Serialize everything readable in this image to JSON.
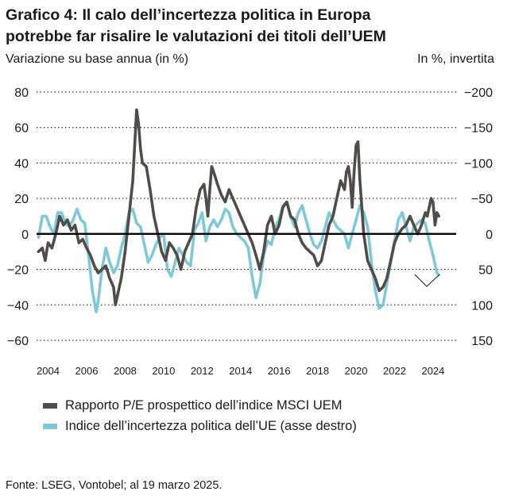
{
  "title_lines": [
    "Grafico 4: Il calo dell’incertezza politica in Europa",
    "potrebbe far risalire le valutazioni dei titoli dell’UEM"
  ],
  "left_axis_label": "Variazione su base annua (in %)",
  "right_axis_label": "In %, invertita",
  "source": "Fonte: LSEG, Vontobel; al 19 marzo 2025.",
  "colors": {
    "pe": "#514c48",
    "epu": "#7ec9d9",
    "zero": "#000000",
    "grid": "#000000"
  },
  "chart_data": {
    "type": "line",
    "title": "Grafico 4: Il calo dell’incertezza politica in Europa potrebbe far risalire le valutazioni dei titoli dell’UEM",
    "x_ticks": [
      "2004",
      "2006",
      "2008",
      "2010",
      "2012",
      "2014",
      "2016",
      "2018",
      "2020",
      "2022",
      "2024"
    ],
    "xlim": [
      2003.4,
      2025.2
    ],
    "left_axis": {
      "ylim": [
        -60,
        80
      ],
      "ticks": [
        "80",
        "60",
        "40",
        "20",
        "0",
        "−20",
        "−40",
        "−60"
      ]
    },
    "right_axis": {
      "ylim": [
        150,
        -200
      ],
      "inverted": true,
      "ticks": [
        "−200",
        "−150",
        "−100",
        "−50",
        "0",
        "50",
        "100",
        "150"
      ]
    },
    "series": [
      {
        "name": "Rapporto P/E prospettico dell’indice MSCI UEM",
        "axis": "left",
        "points": [
          [
            2003.5,
            -10
          ],
          [
            2003.7,
            -8
          ],
          [
            2003.85,
            -15
          ],
          [
            2004.0,
            -5
          ],
          [
            2004.2,
            -8
          ],
          [
            2004.4,
            0
          ],
          [
            2004.6,
            10
          ],
          [
            2004.8,
            5
          ],
          [
            2005.0,
            8
          ],
          [
            2005.2,
            2
          ],
          [
            2005.4,
            5
          ],
          [
            2005.6,
            -5
          ],
          [
            2005.8,
            -3
          ],
          [
            2006.0,
            -8
          ],
          [
            2006.2,
            -12
          ],
          [
            2006.4,
            -18
          ],
          [
            2006.6,
            -22
          ],
          [
            2006.8,
            -20
          ],
          [
            2007.0,
            -18
          ],
          [
            2007.2,
            -25
          ],
          [
            2007.4,
            -30
          ],
          [
            2007.5,
            -40
          ],
          [
            2007.6,
            -35
          ],
          [
            2007.8,
            -25
          ],
          [
            2008.0,
            -10
          ],
          [
            2008.2,
            10
          ],
          [
            2008.4,
            30
          ],
          [
            2008.5,
            50
          ],
          [
            2008.6,
            70
          ],
          [
            2008.7,
            62
          ],
          [
            2008.8,
            48
          ],
          [
            2008.9,
            40
          ],
          [
            2009.1,
            38
          ],
          [
            2009.3,
            25
          ],
          [
            2009.5,
            10
          ],
          [
            2009.7,
            0
          ],
          [
            2009.9,
            -10
          ],
          [
            2010.1,
            -15
          ],
          [
            2010.3,
            -5
          ],
          [
            2010.5,
            -8
          ],
          [
            2010.7,
            -12
          ],
          [
            2010.9,
            -20
          ],
          [
            2011.1,
            -10
          ],
          [
            2011.3,
            -5
          ],
          [
            2011.5,
            0
          ],
          [
            2011.7,
            15
          ],
          [
            2011.9,
            25
          ],
          [
            2012.1,
            28
          ],
          [
            2012.2,
            20
          ],
          [
            2012.3,
            10
          ],
          [
            2012.4,
            25
          ],
          [
            2012.5,
            38
          ],
          [
            2012.6,
            35
          ],
          [
            2012.8,
            28
          ],
          [
            2013.0,
            22
          ],
          [
            2013.2,
            18
          ],
          [
            2013.4,
            25
          ],
          [
            2013.6,
            20
          ],
          [
            2013.8,
            15
          ],
          [
            2014.0,
            10
          ],
          [
            2014.2,
            5
          ],
          [
            2014.4,
            0
          ],
          [
            2014.6,
            -5
          ],
          [
            2014.8,
            -12
          ],
          [
            2015.0,
            -20
          ],
          [
            2015.2,
            -10
          ],
          [
            2015.4,
            5
          ],
          [
            2015.6,
            10
          ],
          [
            2015.8,
            0
          ],
          [
            2016.0,
            5
          ],
          [
            2016.2,
            15
          ],
          [
            2016.4,
            18
          ],
          [
            2016.6,
            10
          ],
          [
            2016.8,
            8
          ],
          [
            2017.0,
            0
          ],
          [
            2017.2,
            -5
          ],
          [
            2017.4,
            -8
          ],
          [
            2017.6,
            -10
          ],
          [
            2017.8,
            -12
          ],
          [
            2018.0,
            -18
          ],
          [
            2018.2,
            -15
          ],
          [
            2018.4,
            -5
          ],
          [
            2018.6,
            5
          ],
          [
            2018.8,
            10
          ],
          [
            2019.0,
            20
          ],
          [
            2019.2,
            30
          ],
          [
            2019.4,
            25
          ],
          [
            2019.5,
            35
          ],
          [
            2019.6,
            38
          ],
          [
            2019.7,
            30
          ],
          [
            2019.8,
            15
          ],
          [
            2019.9,
            35
          ],
          [
            2020.0,
            50
          ],
          [
            2020.1,
            52
          ],
          [
            2020.2,
            30
          ],
          [
            2020.3,
            15
          ],
          [
            2020.4,
            0
          ],
          [
            2020.6,
            -15
          ],
          [
            2020.8,
            -20
          ],
          [
            2021.0,
            -25
          ],
          [
            2021.2,
            -32
          ],
          [
            2021.4,
            -30
          ],
          [
            2021.6,
            -25
          ],
          [
            2021.8,
            -15
          ],
          [
            2022.0,
            -5
          ],
          [
            2022.2,
            0
          ],
          [
            2022.4,
            3
          ],
          [
            2022.6,
            5
          ],
          [
            2022.8,
            10
          ],
          [
            2023.0,
            5
          ],
          [
            2023.2,
            0
          ],
          [
            2023.4,
            5
          ],
          [
            2023.6,
            12
          ],
          [
            2023.7,
            10
          ],
          [
            2023.9,
            20
          ],
          [
            2024.0,
            18
          ],
          [
            2024.1,
            5
          ],
          [
            2024.2,
            12
          ],
          [
            2024.3,
            10
          ]
        ]
      },
      {
        "name": "Indice dell’incertezza politica dell’UE (asse destro)",
        "axis": "right",
        "points": [
          [
            2003.5,
            5
          ],
          [
            2003.7,
            -25
          ],
          [
            2003.9,
            -25
          ],
          [
            2004.1,
            -10
          ],
          [
            2004.3,
            0
          ],
          [
            2004.5,
            -30
          ],
          [
            2004.7,
            -30
          ],
          [
            2004.9,
            -15
          ],
          [
            2005.1,
            -10
          ],
          [
            2005.3,
            -20
          ],
          [
            2005.5,
            -35
          ],
          [
            2005.7,
            -20
          ],
          [
            2005.9,
            -15
          ],
          [
            2006.1,
            30
          ],
          [
            2006.3,
            80
          ],
          [
            2006.5,
            110
          ],
          [
            2006.6,
            95
          ],
          [
            2006.8,
            50
          ],
          [
            2007.0,
            20
          ],
          [
            2007.2,
            40
          ],
          [
            2007.4,
            55
          ],
          [
            2007.6,
            45
          ],
          [
            2007.8,
            20
          ],
          [
            2008.0,
            0
          ],
          [
            2008.2,
            -30
          ],
          [
            2008.4,
            -35
          ],
          [
            2008.6,
            -15
          ],
          [
            2008.8,
            -10
          ],
          [
            2009.0,
            15
          ],
          [
            2009.2,
            40
          ],
          [
            2009.4,
            30
          ],
          [
            2009.6,
            15
          ],
          [
            2009.8,
            5
          ],
          [
            2010.0,
            0
          ],
          [
            2010.2,
            50
          ],
          [
            2010.4,
            60
          ],
          [
            2010.6,
            40
          ],
          [
            2010.8,
            20
          ],
          [
            2011.0,
            30
          ],
          [
            2011.2,
            40
          ],
          [
            2011.4,
            45
          ],
          [
            2011.6,
            -5
          ],
          [
            2011.8,
            -15
          ],
          [
            2012.0,
            -30
          ],
          [
            2012.2,
            10
          ],
          [
            2012.4,
            -10
          ],
          [
            2012.6,
            -20
          ],
          [
            2012.8,
            -10
          ],
          [
            2013.0,
            -20
          ],
          [
            2013.2,
            -35
          ],
          [
            2013.4,
            -30
          ],
          [
            2013.6,
            -10
          ],
          [
            2013.8,
            0
          ],
          [
            2014.0,
            5
          ],
          [
            2014.2,
            10
          ],
          [
            2014.4,
            20
          ],
          [
            2014.6,
            60
          ],
          [
            2014.8,
            90
          ],
          [
            2015.0,
            70
          ],
          [
            2015.2,
            30
          ],
          [
            2015.4,
            10
          ],
          [
            2015.6,
            15
          ],
          [
            2015.8,
            -10
          ],
          [
            2016.0,
            -20
          ],
          [
            2016.2,
            -40
          ],
          [
            2016.4,
            -45
          ],
          [
            2016.6,
            -25
          ],
          [
            2016.8,
            -10
          ],
          [
            2017.0,
            -30
          ],
          [
            2017.2,
            -40
          ],
          [
            2017.4,
            -20
          ],
          [
            2017.6,
            0
          ],
          [
            2017.8,
            15
          ],
          [
            2018.0,
            20
          ],
          [
            2018.2,
            10
          ],
          [
            2018.4,
            -10
          ],
          [
            2018.6,
            -30
          ],
          [
            2018.8,
            -20
          ],
          [
            2019.0,
            -10
          ],
          [
            2019.2,
            -5
          ],
          [
            2019.4,
            0
          ],
          [
            2019.6,
            20
          ],
          [
            2019.8,
            0
          ],
          [
            2020.0,
            -20
          ],
          [
            2020.2,
            -40
          ],
          [
            2020.4,
            -30
          ],
          [
            2020.6,
            -10
          ],
          [
            2020.8,
            40
          ],
          [
            2021.0,
            80
          ],
          [
            2021.2,
            105
          ],
          [
            2021.4,
            100
          ],
          [
            2021.6,
            70
          ],
          [
            2021.8,
            40
          ],
          [
            2022.0,
            10
          ],
          [
            2022.2,
            -20
          ],
          [
            2022.4,
            -30
          ],
          [
            2022.6,
            -10
          ],
          [
            2022.8,
            10
          ],
          [
            2023.0,
            -10
          ],
          [
            2023.2,
            -15
          ],
          [
            2023.4,
            -20
          ],
          [
            2023.6,
            -15
          ],
          [
            2023.8,
            10
          ],
          [
            2024.0,
            30
          ],
          [
            2024.2,
            55
          ],
          [
            2024.3,
            58
          ]
        ]
      }
    ],
    "legend": [
      "Rapporto P/E prospettico dell’indice MSCI UEM",
      "Indice dell’incertezza politica dell’UE (asse destro)"
    ]
  }
}
